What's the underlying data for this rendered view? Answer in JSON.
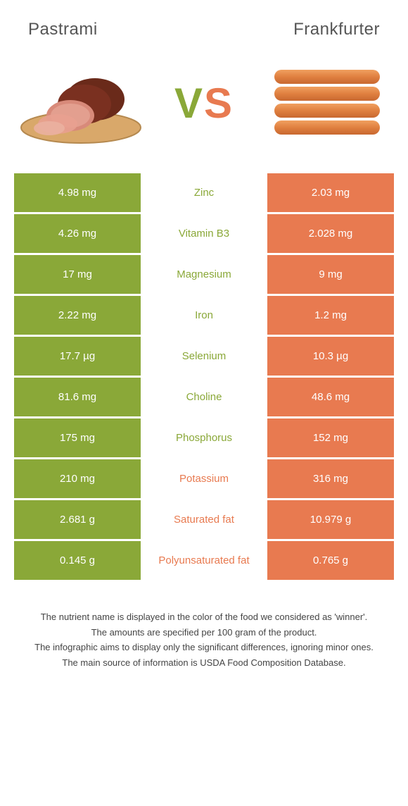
{
  "header": {
    "left_title": "Pastrami",
    "right_title": "Frankfurter"
  },
  "vs": {
    "v": "V",
    "s": "S"
  },
  "colors": {
    "green": "#8aa838",
    "orange": "#e87a50",
    "white": "#ffffff"
  },
  "rows": [
    {
      "nutrient": "Zinc",
      "left": "4.98 mg",
      "right": "2.03 mg",
      "winner": "left"
    },
    {
      "nutrient": "Vitamin B3",
      "left": "4.26 mg",
      "right": "2.028 mg",
      "winner": "left"
    },
    {
      "nutrient": "Magnesium",
      "left": "17 mg",
      "right": "9 mg",
      "winner": "left"
    },
    {
      "nutrient": "Iron",
      "left": "2.22 mg",
      "right": "1.2 mg",
      "winner": "left"
    },
    {
      "nutrient": "Selenium",
      "left": "17.7 µg",
      "right": "10.3 µg",
      "winner": "left"
    },
    {
      "nutrient": "Choline",
      "left": "81.6 mg",
      "right": "48.6 mg",
      "winner": "left"
    },
    {
      "nutrient": "Phosphorus",
      "left": "175 mg",
      "right": "152 mg",
      "winner": "left"
    },
    {
      "nutrient": "Potassium",
      "left": "210 mg",
      "right": "316 mg",
      "winner": "right"
    },
    {
      "nutrient": "Saturated fat",
      "left": "2.681 g",
      "right": "10.979 g",
      "winner": "right"
    },
    {
      "nutrient": "Polyunsaturated fat",
      "left": "0.145 g",
      "right": "0.765 g",
      "winner": "right"
    }
  ],
  "footer": {
    "line1": "The nutrient name is displayed in the color of the food we considered as 'winner'.",
    "line2": "The amounts are specified per 100 gram of the product.",
    "line3": "The infographic aims to display only the significant differences, ignoring minor ones.",
    "line4": "The main source of information is USDA Food Composition Database."
  }
}
